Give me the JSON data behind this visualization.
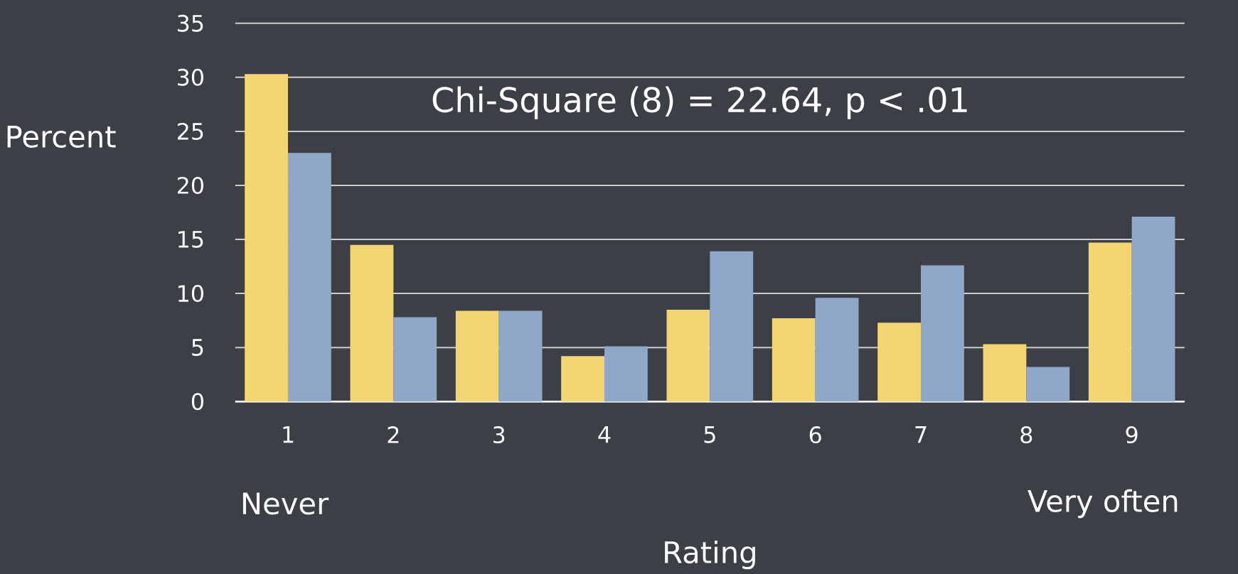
{
  "chart_data": {
    "type": "bar",
    "xlabel": "Rating",
    "ylabel": "Percent",
    "categories": [
      "1",
      "2",
      "3",
      "4",
      "5",
      "6",
      "7",
      "8",
      "9"
    ],
    "series": [
      {
        "color": "#f3d574",
        "values": [
          30.3,
          14.5,
          8.4,
          4.2,
          8.5,
          7.7,
          7.3,
          5.3,
          14.7
        ]
      },
      {
        "color": "#8fa7c9",
        "values": [
          23.0,
          7.8,
          8.4,
          5.1,
          13.9,
          9.6,
          12.6,
          3.2,
          17.1
        ]
      }
    ],
    "ylim": [
      0,
      35
    ],
    "yticks": [
      0,
      5,
      10,
      15,
      20,
      25,
      30,
      35
    ],
    "grid": "y",
    "annotations": [
      {
        "text": "Chi-Square (8) = 22.64, p < .01"
      },
      {
        "text": "Never"
      },
      {
        "text": "Very often"
      }
    ]
  }
}
